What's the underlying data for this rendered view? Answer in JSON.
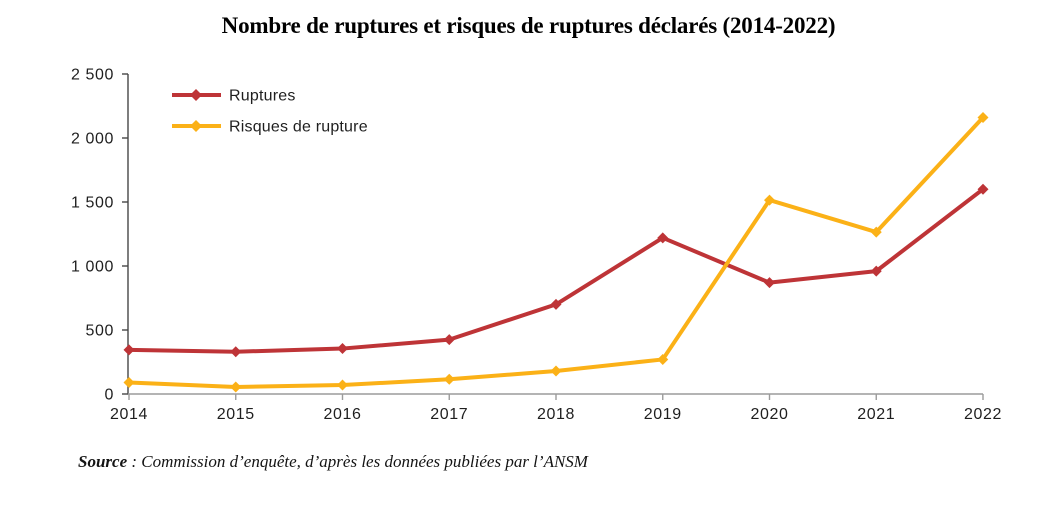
{
  "chart": {
    "title": "Nombre de ruptures et risques de ruptures déclarés (2014-2022)"
  },
  "source": {
    "label": "Source",
    "separator": " : ",
    "text": "Commission d’enquête, d’après les données publiées par l’ANSM"
  },
  "style": {
    "background": "#FFFFFF",
    "y_axis_color": "#464646",
    "x_axis_color": "#9B9B9B",
    "label_color": "#1F1F1F",
    "ruptures_color": "#BE3437",
    "risques_color": "#FBB117"
  },
  "chart_data": {
    "type": "line",
    "title": "Nombre de ruptures et risques de ruptures déclarés (2014-2022)",
    "categories": [
      "2014",
      "2015",
      "2016",
      "2017",
      "2018",
      "2019",
      "2020",
      "2021",
      "2022"
    ],
    "series": [
      {
        "name": "Ruptures",
        "color": "#BE3437",
        "values": [
          345,
          330,
          355,
          425,
          700,
          1220,
          870,
          960,
          1600
        ]
      },
      {
        "name": "Risques de rupture",
        "color": "#FBB117",
        "values": [
          90,
          55,
          70,
          115,
          180,
          270,
          1515,
          1265,
          2160
        ]
      }
    ],
    "xlabel": "",
    "ylabel": "",
    "ylim": [
      0,
      2500
    ],
    "ytick_step": 500,
    "ytick_labels": [
      "0",
      "500",
      "1 000",
      "1 500",
      "2 000",
      "2 500"
    ],
    "legend_position": "top-left",
    "grid": false,
    "marker": "diamond"
  }
}
